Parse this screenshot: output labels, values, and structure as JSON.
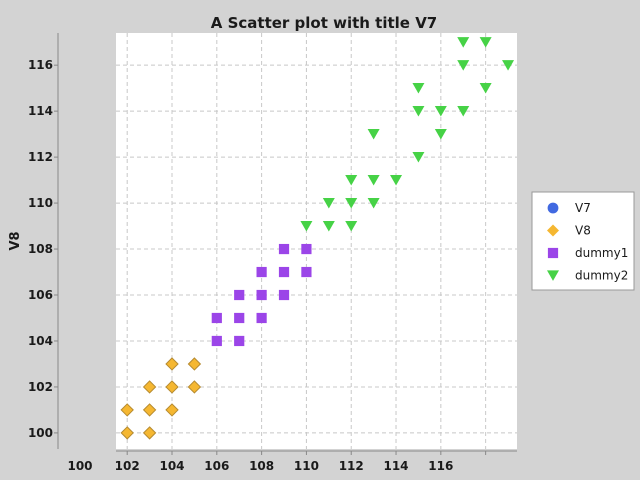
{
  "chart_data": {
    "type": "scatter",
    "title": "A Scatter plot with title V7",
    "xlabel": "",
    "ylabel": "V8",
    "xlim": [
      101.5,
      119.4
    ],
    "ylim": [
      99.3,
      117.4
    ],
    "x_ticks": [
      {
        "value": 102,
        "label": "102"
      },
      {
        "value": 104,
        "label": "104"
      },
      {
        "value": 106,
        "label": "106"
      },
      {
        "value": 108,
        "label": "108"
      },
      {
        "value": 110,
        "label": "110"
      },
      {
        "value": 112,
        "label": "112"
      },
      {
        "value": 114,
        "label": "114"
      },
      {
        "value": 116,
        "label": "116"
      },
      {
        "value": 118,
        "label": ""
      }
    ],
    "extra_x_label": "100",
    "y_ticks": [
      100,
      102,
      104,
      106,
      108,
      110,
      112,
      114,
      116
    ],
    "grid": true,
    "legend_position": "right",
    "series": [
      {
        "name": "V7",
        "marker": "circle",
        "color": "#4169e1",
        "points": []
      },
      {
        "name": "V8",
        "marker": "diamond",
        "color": "#f5b731",
        "stroke": "#b58a30",
        "points": [
          [
            102,
            100
          ],
          [
            102,
            101
          ],
          [
            103,
            100
          ],
          [
            103,
            101
          ],
          [
            103,
            102
          ],
          [
            104,
            101
          ],
          [
            104,
            102
          ],
          [
            104,
            103
          ],
          [
            105,
            102
          ],
          [
            105,
            103
          ]
        ]
      },
      {
        "name": "dummy1",
        "marker": "square",
        "color": "#9b45e8",
        "dark": "#7a12e6",
        "points": [
          [
            106,
            104
          ],
          [
            106,
            105
          ],
          [
            107,
            104
          ],
          [
            107,
            105
          ],
          [
            107,
            106
          ],
          [
            108,
            105
          ],
          [
            108,
            106
          ],
          [
            108,
            107
          ],
          [
            109,
            106
          ],
          [
            109,
            107
          ],
          [
            109,
            108
          ],
          [
            110,
            107
          ],
          [
            110,
            108
          ]
        ]
      },
      {
        "name": "dummy2",
        "marker": "triangle-down",
        "color": "#46d246",
        "dark": "#16b816",
        "points": [
          [
            110,
            109
          ],
          [
            111,
            109
          ],
          [
            111,
            110
          ],
          [
            112,
            109
          ],
          [
            112,
            110
          ],
          [
            112,
            111
          ],
          [
            113,
            110
          ],
          [
            113,
            111
          ],
          [
            113,
            113
          ],
          [
            114,
            111
          ],
          [
            115,
            112
          ],
          [
            115,
            114
          ],
          [
            115,
            115
          ],
          [
            116,
            113
          ],
          [
            116,
            114
          ],
          [
            117,
            114
          ],
          [
            117,
            116
          ],
          [
            117,
            117
          ],
          [
            118,
            115
          ],
          [
            118,
            117
          ],
          [
            119,
            116
          ]
        ]
      }
    ]
  }
}
